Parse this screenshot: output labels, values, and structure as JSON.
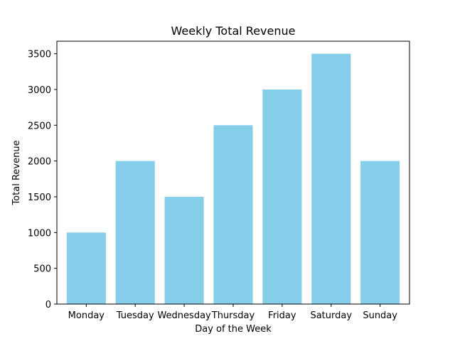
{
  "chart_data": {
    "type": "bar",
    "title": "Weekly Total Revenue",
    "xlabel": "Day of the Week",
    "ylabel": "Total Revenue",
    "categories": [
      "Monday",
      "Tuesday",
      "Wednesday",
      "Thursday",
      "Friday",
      "Saturday",
      "Sunday"
    ],
    "values": [
      1000,
      2000,
      1500,
      2500,
      3000,
      3500,
      2000
    ],
    "ylim": [
      0,
      3675
    ],
    "yticks": [
      0,
      500,
      1000,
      1500,
      2000,
      2500,
      3000,
      3500
    ],
    "grid": false,
    "bar_color": "#87ceeb"
  }
}
